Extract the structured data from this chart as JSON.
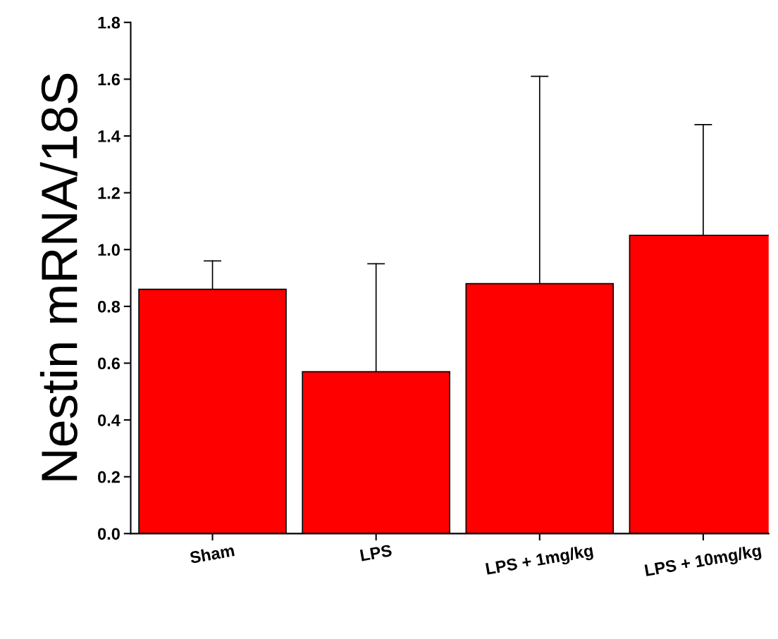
{
  "chart_data": {
    "type": "bar",
    "ylabel": "Nestin mRNA/18S",
    "categories": [
      "Sham",
      "LPS",
      "LPS + 1mg/kg",
      "LPS + 10mg/kg"
    ],
    "values": [
      0.86,
      0.57,
      0.88,
      1.05
    ],
    "errors": [
      [
        0.86,
        0.96
      ],
      [
        0.57,
        0.95
      ],
      [
        0.88,
        1.61
      ],
      [
        1.05,
        1.44
      ]
    ],
    "color": "#ff0000",
    "ylim": [
      0,
      1.8
    ],
    "yticks": [
      {
        "value": 0,
        "label": "0.0"
      },
      0.2,
      0.4,
      0.6,
      0.8,
      {
        "value": 1.0,
        "label": "1.0"
      },
      1.2,
      1.4,
      1.6,
      1.8
    ],
    "grid": false,
    "legend": false
  }
}
